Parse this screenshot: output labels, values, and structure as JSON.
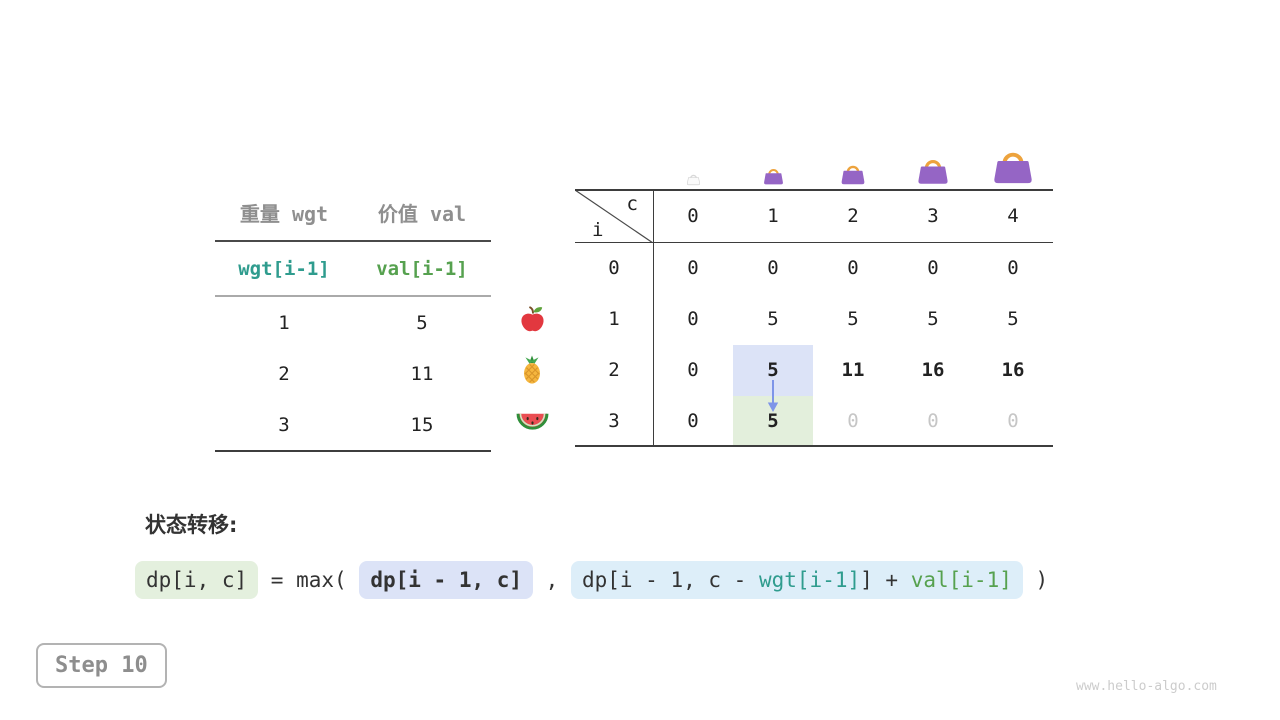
{
  "meta": {
    "step_label": "Step 10",
    "watermark": "www.hello-algo.com"
  },
  "item_table": {
    "col_headers": [
      "重量 wgt",
      "价值 val"
    ],
    "var_row": [
      "wgt[i-1]",
      "val[i-1]"
    ],
    "rows": [
      {
        "wgt": "1",
        "val": "5",
        "fruit": "apple"
      },
      {
        "wgt": "2",
        "val": "11",
        "fruit": "pineapple"
      },
      {
        "wgt": "3",
        "val": "15",
        "fruit": "watermelon"
      }
    ]
  },
  "dp_table": {
    "corner": {
      "col_var": "c",
      "row_var": "i"
    },
    "col_headers": [
      "0",
      "1",
      "2",
      "3",
      "4"
    ],
    "bags": [
      {
        "capacity": 0,
        "variant": "empty"
      },
      {
        "capacity": 1,
        "variant": "xs"
      },
      {
        "capacity": 2,
        "variant": "sm"
      },
      {
        "capacity": 3,
        "variant": "md"
      },
      {
        "capacity": 4,
        "variant": "lg"
      }
    ],
    "rows": [
      {
        "label": "0",
        "cells": [
          {
            "v": "0"
          },
          {
            "v": "0"
          },
          {
            "v": "0"
          },
          {
            "v": "0"
          },
          {
            "v": "0"
          }
        ]
      },
      {
        "label": "1",
        "cells": [
          {
            "v": "0"
          },
          {
            "v": "5"
          },
          {
            "v": "5"
          },
          {
            "v": "5"
          },
          {
            "v": "5"
          }
        ]
      },
      {
        "label": "2",
        "cells": [
          {
            "v": "0"
          },
          {
            "v": "5",
            "bg": "blue",
            "bold": true
          },
          {
            "v": "11",
            "bold": true
          },
          {
            "v": "16",
            "bold": true
          },
          {
            "v": "16",
            "bold": true
          }
        ]
      },
      {
        "label": "3",
        "cells": [
          {
            "v": "0"
          },
          {
            "v": "5",
            "bg": "green",
            "bold": true
          },
          {
            "v": "0",
            "dim": true
          },
          {
            "v": "0",
            "dim": true
          },
          {
            "v": "0",
            "dim": true
          }
        ]
      }
    ],
    "arrow": {
      "from_row": 2,
      "from_col": 1,
      "to_row": 3,
      "to_col": 1
    }
  },
  "formula": {
    "label": "状态转移:",
    "tokens": [
      {
        "style": "pill-green",
        "text": "dp[i, c]"
      },
      {
        "style": "plain",
        "text": " = max( "
      },
      {
        "style": "pill-blue",
        "text": "dp[i - 1, c]"
      },
      {
        "style": "plain",
        "text": " , "
      },
      {
        "style": "pill-lightblue",
        "parts": [
          {
            "color": "dark",
            "text": "dp[i - 1, c - "
          },
          {
            "color": "teal",
            "text": "wgt[i-1]"
          },
          {
            "color": "dark",
            "text": "] + "
          },
          {
            "color": "green",
            "text": "val[i-1]"
          }
        ]
      },
      {
        "style": "plain",
        "text": " )"
      }
    ]
  },
  "colors": {
    "teal": "#2f9c8e",
    "green": "#56a14f",
    "cell_highlight_blue": "#dce3f7",
    "cell_highlight_green": "#e3efdc",
    "formula_lightblue": "#ddeef9",
    "dim_text": "#c6c6c6",
    "arrow_blue": "#7e95e8",
    "bag_purple": "#9565c5",
    "bag_handle_orange": "#eda33d"
  }
}
